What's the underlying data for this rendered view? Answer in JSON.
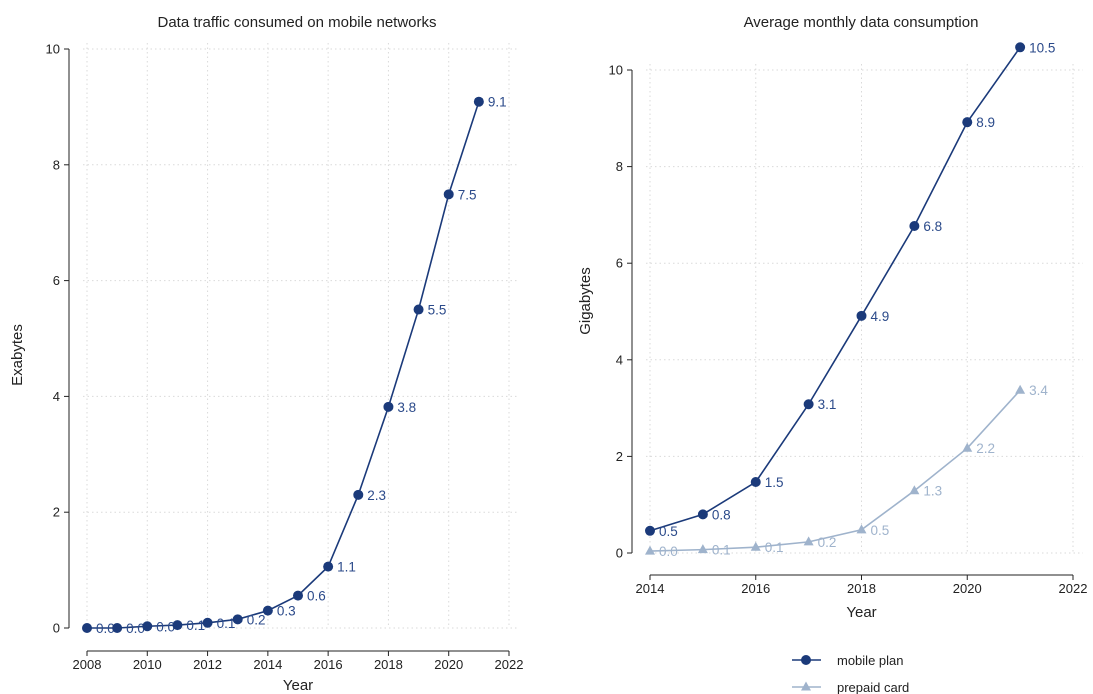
{
  "chart_data": [
    {
      "type": "line",
      "title": "Data traffic consumed on mobile networks",
      "xlabel": "Year",
      "ylabel": "Exabytes",
      "xlim": [
        2008,
        2022
      ],
      "ylim": [
        0,
        10
      ],
      "xticks": [
        "2008",
        "2010",
        "2012",
        "2014",
        "2016",
        "2018",
        "2020",
        "2022"
      ],
      "yticks": [
        "0",
        "2",
        "4",
        "6",
        "8",
        "10"
      ],
      "grid": true,
      "series": [
        {
          "color": "#1b3a7a",
          "marker": "circle",
          "x": [
            2008,
            2009,
            2010,
            2011,
            2012,
            2013,
            2014,
            2015,
            2016,
            2017,
            2018,
            2019,
            2020,
            2021
          ],
          "values": [
            0.0,
            0.0,
            0.03,
            0.05,
            0.09,
            0.15,
            0.3,
            0.56,
            1.06,
            2.3,
            3.82,
            5.5,
            7.49,
            9.09
          ],
          "labels": [
            "0.0",
            "0.0",
            "0.0",
            "0.1",
            "0.1",
            "0.2",
            "0.3",
            "0.6",
            "1.1",
            "2.3",
            "3.8",
            "5.5",
            "7.5",
            "9.1"
          ]
        }
      ]
    },
    {
      "type": "line",
      "title": "Average monthly data consumption",
      "xlabel": "Year",
      "ylabel": "Gigabytes",
      "xlim": [
        2014,
        2022
      ],
      "ylim": [
        0,
        10
      ],
      "xticks": [
        "2014",
        "2016",
        "2018",
        "2020",
        "2022"
      ],
      "yticks": [
        "0",
        "2",
        "4",
        "6",
        "8",
        "10"
      ],
      "grid": true,
      "legend_position": "bottom",
      "series": [
        {
          "name": "mobile plan",
          "color": "#1b3a7a",
          "marker": "circle",
          "x": [
            2014,
            2015,
            2016,
            2017,
            2018,
            2019,
            2020,
            2021
          ],
          "values": [
            0.46,
            0.8,
            1.47,
            3.08,
            4.91,
            6.77,
            8.92,
            10.47
          ],
          "labels": [
            "0.5",
            "0.8",
            "1.5",
            "3.1",
            "4.9",
            "6.8",
            "8.9",
            "10.5"
          ]
        },
        {
          "name": "prepaid card",
          "color": "#9fb3cc",
          "marker": "triangle",
          "x": [
            2014,
            2015,
            2016,
            2017,
            2018,
            2019,
            2020,
            2021
          ],
          "values": [
            0.04,
            0.07,
            0.12,
            0.23,
            0.48,
            1.29,
            2.17,
            3.37
          ],
          "labels": [
            "0.0",
            "0.1",
            "0.1",
            "0.2",
            "0.5",
            "1.3",
            "2.2",
            "3.4"
          ]
        }
      ]
    }
  ]
}
